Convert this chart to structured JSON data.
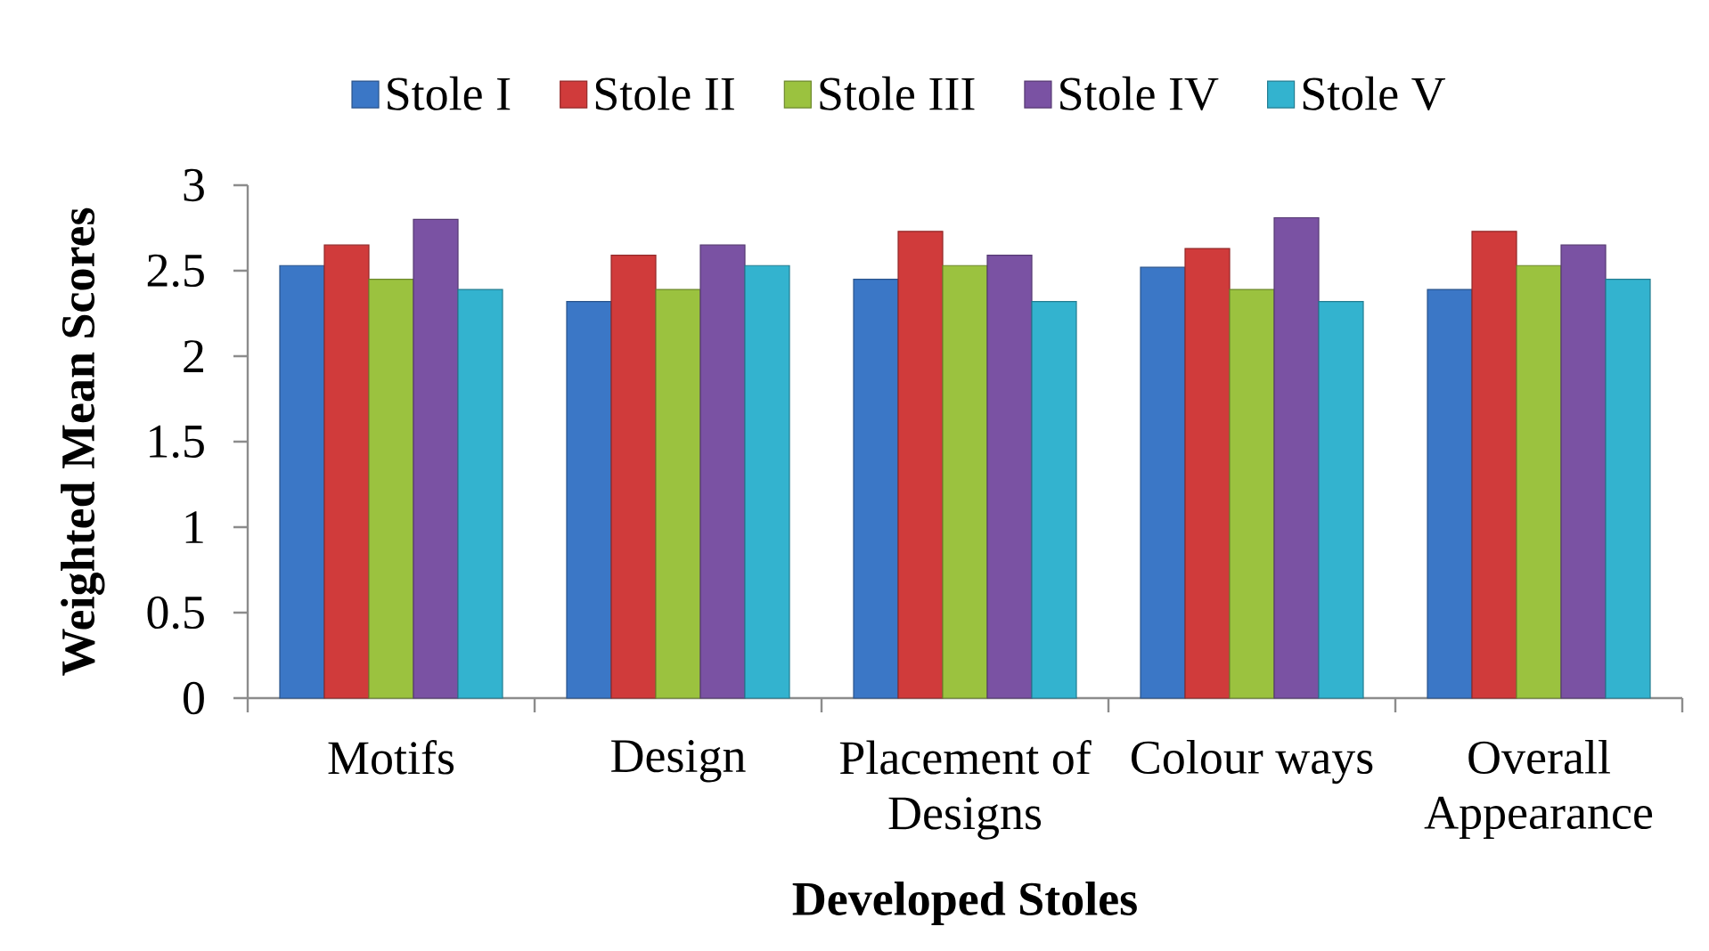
{
  "chart_data": {
    "type": "bar",
    "xlabel": "Developed Stoles",
    "ylabel": "Weighted Mean Scores",
    "categories": [
      "Motifs",
      "Design",
      "Placement of Designs",
      "Colour ways",
      "Overall Appearance"
    ],
    "series": [
      {
        "name": "Stole I",
        "color": "#3b77c6",
        "values": [
          2.53,
          2.32,
          2.45,
          2.52,
          2.39
        ]
      },
      {
        "name": "Stole II",
        "color": "#d03b3b",
        "values": [
          2.65,
          2.59,
          2.73,
          2.63,
          2.73
        ]
      },
      {
        "name": "Stole III",
        "color": "#9bc23f",
        "values": [
          2.45,
          2.39,
          2.53,
          2.39,
          2.53
        ]
      },
      {
        "name": "Stole IV",
        "color": "#7a52a3",
        "values": [
          2.8,
          2.65,
          2.59,
          2.81,
          2.65
        ]
      },
      {
        "name": "Stole V",
        "color": "#33b3cf",
        "values": [
          2.39,
          2.53,
          2.32,
          2.32,
          2.45
        ]
      }
    ],
    "ylim": [
      0,
      3
    ],
    "yticks": [
      0,
      0.5,
      1,
      1.5,
      2,
      2.5,
      3
    ],
    "grid": false,
    "legend": "top"
  }
}
